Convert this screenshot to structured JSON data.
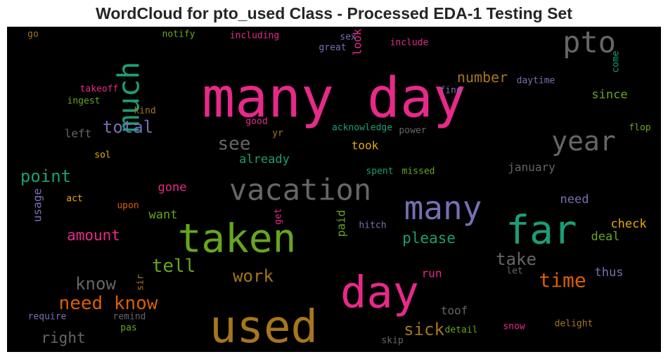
{
  "chart_data": {
    "type": "wordcloud",
    "title": "WordCloud for pto_used Class - Processed EDA-1 Testing Set",
    "background": "#000000",
    "palette": [
      "#1b9e77",
      "#d95f02",
      "#7570b3",
      "#e7298a",
      "#66a61e",
      "#e6ab02",
      "#a6761d",
      "#666666"
    ],
    "words": [
      {
        "text": "many day",
        "color": "#e7298a",
        "rotated": false
      },
      {
        "text": "used",
        "color": "#a6761d",
        "rotated": false
      },
      {
        "text": "taken",
        "color": "#66a61e",
        "rotated": false
      },
      {
        "text": "far",
        "color": "#1b9e77",
        "rotated": false
      },
      {
        "text": "day",
        "color": "#e7298a",
        "rotated": false
      },
      {
        "text": "vacation",
        "color": "#666666",
        "rotated": false
      },
      {
        "text": "many",
        "color": "#7570b3",
        "rotated": false
      },
      {
        "text": "much",
        "color": "#1b9e77",
        "rotated": true
      },
      {
        "text": "pto",
        "color": "#666666",
        "rotated": false
      },
      {
        "text": "year",
        "color": "#666666",
        "rotated": false
      },
      {
        "text": "need know",
        "color": "#d95f02",
        "rotated": false
      },
      {
        "text": "tell",
        "color": "#66a61e",
        "rotated": false
      },
      {
        "text": "time",
        "color": "#d95f02",
        "rotated": false
      },
      {
        "text": "total",
        "color": "#7570b3",
        "rotated": false
      },
      {
        "text": "point",
        "color": "#1b9e77",
        "rotated": false
      },
      {
        "text": "see",
        "color": "#666666",
        "rotated": false
      },
      {
        "text": "know",
        "color": "#666666",
        "rotated": false
      },
      {
        "text": "work",
        "color": "#a6761d",
        "rotated": false
      },
      {
        "text": "take",
        "color": "#666666",
        "rotated": false
      },
      {
        "text": "sick",
        "color": "#a6761d",
        "rotated": false
      },
      {
        "text": "amount",
        "color": "#e7298a",
        "rotated": false
      },
      {
        "text": "please",
        "color": "#1b9e77",
        "rotated": false
      },
      {
        "text": "number",
        "color": "#a6761d",
        "rotated": false
      },
      {
        "text": "right",
        "color": "#666666",
        "rotated": false
      },
      {
        "text": "check",
        "color": "#e6ab02",
        "rotated": false
      },
      {
        "text": "since",
        "color": "#66a61e",
        "rotated": false
      },
      {
        "text": "gone",
        "color": "#e7298a",
        "rotated": false
      },
      {
        "text": "want",
        "color": "#66a61e",
        "rotated": false
      },
      {
        "text": "already",
        "color": "#1b9e77",
        "rotated": false
      },
      {
        "text": "deal",
        "color": "#66a61e",
        "rotated": false
      },
      {
        "text": "thus",
        "color": "#7570b3",
        "rotated": false
      },
      {
        "text": "need",
        "color": "#7570b3",
        "rotated": false
      },
      {
        "text": "january",
        "color": "#666666",
        "rotated": false
      },
      {
        "text": "toof",
        "color": "#666666",
        "rotated": false
      },
      {
        "text": "run",
        "color": "#e7298a",
        "rotated": false
      },
      {
        "text": "left",
        "color": "#666666",
        "rotated": false
      },
      {
        "text": "took",
        "color": "#e6ab02",
        "rotated": false
      },
      {
        "text": "paid",
        "color": "#66a61e",
        "rotated": true
      },
      {
        "text": "usage",
        "color": "#7570b3",
        "rotated": true
      },
      {
        "text": "look",
        "color": "#e7298a",
        "rotated": true
      },
      {
        "text": "daytime",
        "color": "#7570b3",
        "rotated": false
      },
      {
        "text": "acknowledge",
        "color": "#1b9e77",
        "rotated": false
      },
      {
        "text": "including",
        "color": "#e7298a",
        "rotated": false
      },
      {
        "text": "notify",
        "color": "#66a61e",
        "rotated": false
      },
      {
        "text": "include",
        "color": "#e7298a",
        "rotated": false
      },
      {
        "text": "great",
        "color": "#7570b3",
        "rotated": false
      },
      {
        "text": "sex",
        "color": "#7570b3",
        "rotated": false
      },
      {
        "text": "go",
        "color": "#a6761d",
        "rotated": false
      },
      {
        "text": "takeoff",
        "color": "#e7298a",
        "rotated": false
      },
      {
        "text": "ingest",
        "color": "#66a61e",
        "rotated": false
      },
      {
        "text": "kind",
        "color": "#a6761d",
        "rotated": false
      },
      {
        "text": "good",
        "color": "#e7298a",
        "rotated": false
      },
      {
        "text": "yr",
        "color": "#a6761d",
        "rotated": false
      },
      {
        "text": "power",
        "color": "#666666",
        "rotated": false
      },
      {
        "text": "find",
        "color": "#7570b3",
        "rotated": false
      },
      {
        "text": "come",
        "color": "#1b9e77",
        "rotated": true
      },
      {
        "text": "flop",
        "color": "#66a61e",
        "rotated": false
      },
      {
        "text": "sol",
        "color": "#e6ab02",
        "rotated": false
      },
      {
        "text": "spent",
        "color": "#1b9e77",
        "rotated": false
      },
      {
        "text": "missed",
        "color": "#66a61e",
        "rotated": false
      },
      {
        "text": "act",
        "color": "#e6ab02",
        "rotated": false
      },
      {
        "text": "upon",
        "color": "#d95f02",
        "rotated": false
      },
      {
        "text": "get",
        "color": "#e7298a",
        "rotated": true
      },
      {
        "text": "hitch",
        "color": "#7570b3",
        "rotated": false
      },
      {
        "text": "sir",
        "color": "#a6761d",
        "rotated": true
      },
      {
        "text": "let",
        "color": "#666666",
        "rotated": false
      },
      {
        "text": "require",
        "color": "#7570b3",
        "rotated": false
      },
      {
        "text": "remind",
        "color": "#666666",
        "rotated": false
      },
      {
        "text": "pas",
        "color": "#66a61e",
        "rotated": false
      },
      {
        "text": "skip",
        "color": "#666666",
        "rotated": false
      },
      {
        "text": "detail",
        "color": "#66a61e",
        "rotated": false
      },
      {
        "text": "snow",
        "color": "#e7298a",
        "rotated": false
      },
      {
        "text": "delight",
        "color": "#a6761d",
        "rotated": false
      }
    ]
  }
}
